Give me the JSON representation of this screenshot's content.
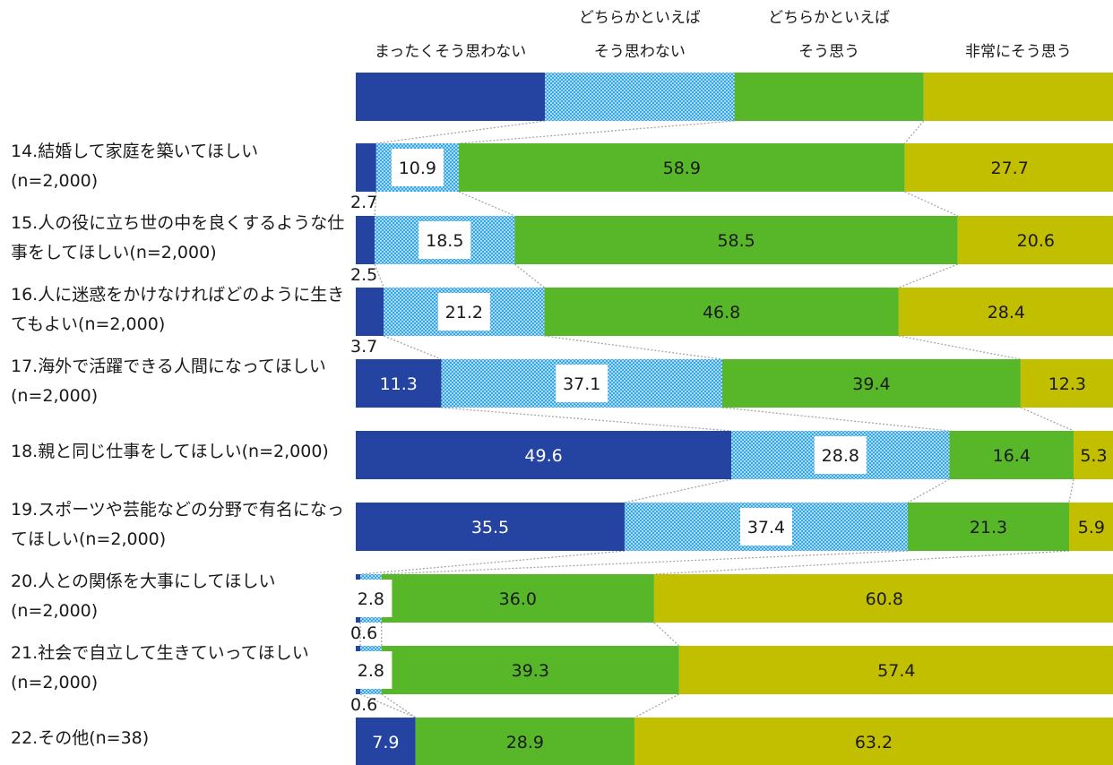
{
  "chart_data": {
    "type": "bar",
    "orientation": "horizontal",
    "stacked": true,
    "percent_scale": [
      0,
      100
    ],
    "series": [
      {
        "name": "まったくそう思わない",
        "legend_lines": [
          "まったくそう思わない"
        ],
        "color": "#2544a2",
        "pattern": false,
        "values": [
          2.7,
          2.5,
          3.7,
          11.3,
          49.6,
          35.5,
          0.6,
          0.6,
          7.9
        ]
      },
      {
        "name": "どちらかといえばそう思わない",
        "legend_lines": [
          "どちらかといえば",
          "そう思わない"
        ],
        "color": "#35a6e6",
        "pattern": true,
        "values": [
          10.9,
          18.5,
          21.2,
          37.1,
          28.8,
          37.4,
          2.8,
          2.8,
          0
        ]
      },
      {
        "name": "どちらかといえばそう思う",
        "legend_lines": [
          "どちらかといえば",
          "そう思う"
        ],
        "color": "#57b728",
        "pattern": false,
        "values": [
          58.9,
          58.5,
          46.8,
          39.4,
          16.4,
          21.3,
          36.0,
          39.3,
          28.9
        ]
      },
      {
        "name": "非常にそう思う",
        "legend_lines": [
          "非常にそう思う"
        ],
        "color": "#c2be00",
        "pattern": false,
        "values": [
          27.7,
          20.6,
          28.4,
          12.3,
          5.3,
          5.9,
          60.8,
          57.4,
          63.2
        ]
      }
    ],
    "categories": [
      {
        "lines": [
          "14.結婚して家庭を築いてほしい",
          "(n=2,000)"
        ]
      },
      {
        "lines": [
          "15.人の役に立ち世の中を良くするような仕",
          "事をしてほしい(n=2,000)"
        ]
      },
      {
        "lines": [
          "16.人に迷惑をかけなければどのように生き",
          "てもよい(n=2,000)"
        ]
      },
      {
        "lines": [
          "17.海外で活躍できる人間になってほしい",
          "(n=2,000)"
        ]
      },
      {
        "lines": [
          "18.親と同じ仕事をしてほしい(n=2,000)"
        ]
      },
      {
        "lines": [
          "19.スポーツや芸能などの分野で有名になっ",
          "てほしい(n=2,000)"
        ]
      },
      {
        "lines": [
          "20.人との関係を大事にしてほしい",
          "(n=2,000)"
        ]
      },
      {
        "lines": [
          "21.社会で自立して生きていってほしい",
          "(n=2,000)"
        ]
      },
      {
        "lines": [
          "22.その他(n=38)"
        ]
      }
    ],
    "data_labels": [
      [
        "2.7",
        "10.9",
        "58.9",
        "27.7"
      ],
      [
        "2.5",
        "18.5",
        "58.5",
        "20.6"
      ],
      [
        "3.7",
        "21.2",
        "46.8",
        "28.4"
      ],
      [
        "11.3",
        "37.1",
        "39.4",
        "12.3"
      ],
      [
        "49.6",
        "28.8",
        "16.4",
        "5.3"
      ],
      [
        "35.5",
        "37.4",
        "21.3",
        "5.9"
      ],
      [
        "0.6",
        "2.8",
        "36.0",
        "60.8"
      ],
      [
        "0.6",
        "2.8",
        "39.3",
        "57.4"
      ],
      [
        "7.9",
        "",
        "28.9",
        "63.2"
      ]
    ],
    "connector_lines": true,
    "legend_position": "top"
  }
}
